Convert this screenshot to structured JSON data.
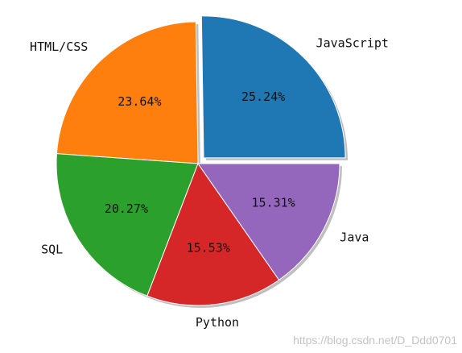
{
  "chart_data": {
    "type": "pie",
    "slices": [
      {
        "label": "JavaScript",
        "value": 25.24,
        "pct_label": "25.24%",
        "color": "#1f77b4",
        "exploded": true
      },
      {
        "label": "HTML/CSS",
        "value": 23.64,
        "pct_label": "23.64%",
        "color": "#ff7f0e",
        "exploded": false
      },
      {
        "label": "SQL",
        "value": 20.27,
        "pct_label": "20.27%",
        "color": "#2ca02c",
        "exploded": false
      },
      {
        "label": "Python",
        "value": 15.53,
        "pct_label": "15.53%",
        "color": "#d62728",
        "exploded": false
      },
      {
        "label": "Java",
        "value": 15.31,
        "pct_label": "15.31%",
        "color": "#9467bd",
        "exploded": false
      }
    ],
    "start_angle_deg": 0,
    "direction": "counterclockwise",
    "shadow": true
  },
  "watermark": "https://blog.csdn.net/D_Ddd0701"
}
